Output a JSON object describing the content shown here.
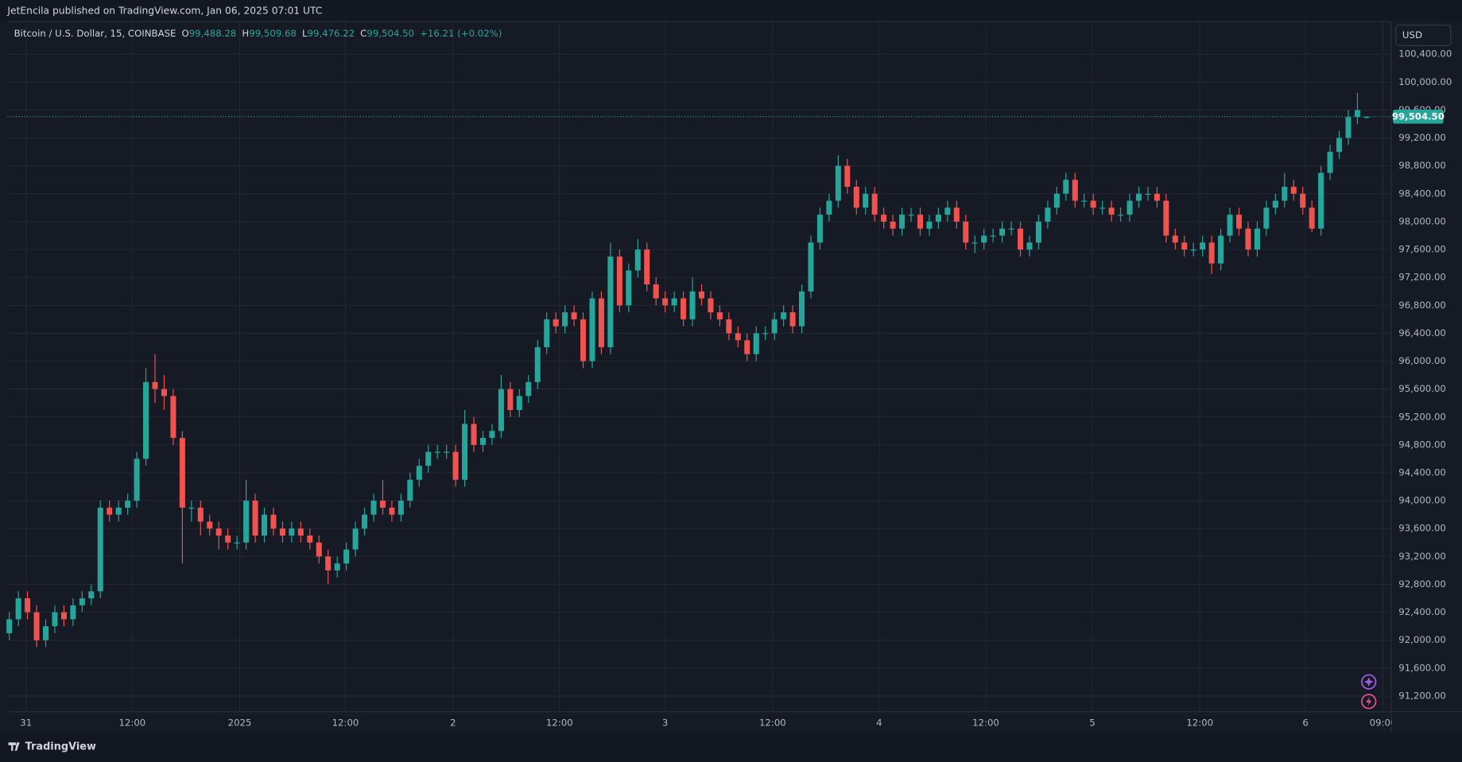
{
  "chart_data": {
    "type": "candlestick",
    "publisher": "JetEncila published on TradingView.com, Jan 06, 2025 07:01 UTC",
    "brand": "TradingView",
    "currency": "USD",
    "legend": {
      "symbol": "Bitcoin / U.S. Dollar, 15, COINBASE",
      "fields": [
        {
          "key": "O",
          "label": "99,488.28"
        },
        {
          "key": "H",
          "label": "99,509.68"
        },
        {
          "key": "L",
          "label": "99,476.22"
        },
        {
          "key": "C",
          "label": "99,504.50"
        }
      ],
      "change": "+16.21 (+0.02%)"
    },
    "last_price_label": "99,504.50",
    "up_color": "#26a69a",
    "down_color": "#ef5350",
    "grid": true,
    "xlim": [
      -0.2,
      151.7
    ],
    "xticks": [
      {
        "value": 1.84,
        "label": "31"
      },
      {
        "value": 13.5,
        "label": "12:00"
      },
      {
        "value": 25.3,
        "label": "2025"
      },
      {
        "value": 36.9,
        "label": "12:00"
      },
      {
        "value": 48.7,
        "label": "2"
      },
      {
        "value": 60.4,
        "label": "12:00"
      },
      {
        "value": 72.0,
        "label": "3"
      },
      {
        "value": 83.8,
        "label": "12:00"
      },
      {
        "value": 95.5,
        "label": "4"
      },
      {
        "value": 107.2,
        "label": "12:00"
      },
      {
        "value": 118.9,
        "label": "5"
      },
      {
        "value": 130.7,
        "label": "12:00"
      },
      {
        "value": 142.3,
        "label": "6"
      },
      {
        "value": 150.8,
        "label": "09:00"
      }
    ],
    "ylim": [
      90975,
      100870
    ],
    "yticks": [
      {
        "value": 91200,
        "label": "91,200.00"
      },
      {
        "value": 91600,
        "label": "91,600.00"
      },
      {
        "value": 92000,
        "label": "92,000.00"
      },
      {
        "value": 92400,
        "label": "92,400.00"
      },
      {
        "value": 92800,
        "label": "92,800.00"
      },
      {
        "value": 93200,
        "label": "93,200.00"
      },
      {
        "value": 93600,
        "label": "93,600.00"
      },
      {
        "value": 94000,
        "label": "94,000.00"
      },
      {
        "value": 94400,
        "label": "94,400.00"
      },
      {
        "value": 94800,
        "label": "94,800.00"
      },
      {
        "value": 95200,
        "label": "95,200.00"
      },
      {
        "value": 95600,
        "label": "95,600.00"
      },
      {
        "value": 96000,
        "label": "96,000.00"
      },
      {
        "value": 96400,
        "label": "96,400.00"
      },
      {
        "value": 96800,
        "label": "96,800.00"
      },
      {
        "value": 97200,
        "label": "97,200.00"
      },
      {
        "value": 97600,
        "label": "97,600.00"
      },
      {
        "value": 98000,
        "label": "98,000.00"
      },
      {
        "value": 98400,
        "label": "98,400.00"
      },
      {
        "value": 98800,
        "label": "98,800.00"
      },
      {
        "value": 99200,
        "label": "99,200.00"
      },
      {
        "value": 99600,
        "label": "99,600.00"
      },
      {
        "value": 100000,
        "label": "100,000.00"
      },
      {
        "value": 100400,
        "label": "100,400.00"
      }
    ],
    "open": [
      92100,
      92300,
      92600,
      92400,
      92000,
      92200,
      92400,
      92300,
      92500,
      92600,
      92700,
      93900,
      93800,
      93900,
      94000,
      94600,
      95700,
      95600,
      95500,
      94900,
      93900,
      93900,
      93700,
      93600,
      93500,
      93400,
      93400,
      94000,
      93500,
      93800,
      93600,
      93500,
      93600,
      93500,
      93400,
      93200,
      93000,
      93100,
      93300,
      93600,
      93800,
      94000,
      93900,
      93800,
      94000,
      94300,
      94500,
      94700,
      94700,
      94700,
      94300,
      95100,
      94800,
      94900,
      95000,
      95600,
      95300,
      95500,
      95700,
      96200,
      96600,
      96500,
      96700,
      96600,
      96000,
      96900,
      96200,
      97500,
      96800,
      97300,
      97600,
      97100,
      96900,
      96800,
      96900,
      96600,
      97000,
      96900,
      96700,
      96600,
      96400,
      96300,
      96100,
      96400,
      96400,
      96600,
      96700,
      96500,
      97000,
      97700,
      98100,
      98300,
      98800,
      98500,
      98200,
      98400,
      98100,
      98000,
      97900,
      98100,
      98100,
      97900,
      98000,
      98100,
      98200,
      98000,
      97700,
      97700,
      97800,
      97800,
      97900,
      97900,
      97600,
      97700,
      98000,
      98200,
      98400,
      98600,
      98300,
      98300,
      98200,
      98200,
      98100,
      98100,
      98300,
      98400,
      98400,
      98300,
      97800,
      97700,
      97600,
      97600,
      97700,
      97400,
      97800,
      98100,
      97900,
      97600,
      97900,
      98200,
      98300,
      98500,
      98400,
      98200,
      97900,
      98700,
      99000,
      99200,
      99500,
      99488.28
    ],
    "high": [
      92400,
      92700,
      92700,
      92500,
      92300,
      92500,
      92500,
      92600,
      92700,
      92800,
      94000,
      94000,
      94000,
      94100,
      94700,
      95900,
      96100,
      95800,
      95600,
      95000,
      94000,
      94000,
      93800,
      93700,
      93600,
      93500,
      94300,
      94100,
      93900,
      93900,
      93700,
      93700,
      93700,
      93600,
      93500,
      93300,
      93200,
      93400,
      93700,
      93900,
      94100,
      94300,
      94000,
      94100,
      94400,
      94600,
      94800,
      94800,
      94800,
      94800,
      95300,
      95200,
      95000,
      95100,
      95800,
      95700,
      95600,
      95800,
      96300,
      96700,
      96700,
      96800,
      96800,
      96700,
      97000,
      97000,
      97700,
      97600,
      97400,
      97750,
      97700,
      97200,
      97000,
      97000,
      97000,
      97200,
      97100,
      97000,
      96800,
      96700,
      96500,
      96400,
      96500,
      96500,
      96700,
      96800,
      96800,
      97100,
      97800,
      98200,
      98400,
      98950,
      98900,
      98600,
      98500,
      98500,
      98200,
      98100,
      98200,
      98200,
      98200,
      98100,
      98200,
      98300,
      98300,
      98100,
      97800,
      97900,
      97900,
      98000,
      98000,
      98000,
      97800,
      98100,
      98300,
      98500,
      98700,
      98700,
      98400,
      98400,
      98300,
      98300,
      98200,
      98400,
      98500,
      98500,
      98500,
      98400,
      97900,
      97800,
      97700,
      97800,
      97800,
      97900,
      98200,
      98200,
      98000,
      98000,
      98300,
      98400,
      98700,
      98600,
      98500,
      98300,
      98800,
      99100,
      99300,
      99600,
      99850,
      99509.68
    ],
    "low": [
      92000,
      92200,
      92300,
      91900,
      91900,
      92100,
      92200,
      92200,
      92400,
      92500,
      92600,
      93700,
      93700,
      93800,
      93900,
      94500,
      95400,
      95300,
      94800,
      93100,
      93700,
      93500,
      93500,
      93300,
      93300,
      93300,
      93300,
      93400,
      93400,
      93500,
      93400,
      93400,
      93400,
      93300,
      93100,
      92800,
      92900,
      93000,
      93200,
      93500,
      93700,
      93800,
      93700,
      93700,
      93900,
      94200,
      94400,
      94600,
      94600,
      94200,
      94200,
      94700,
      94700,
      94800,
      94900,
      95200,
      95200,
      95400,
      95600,
      96100,
      96400,
      96400,
      96500,
      95900,
      95900,
      96100,
      96100,
      96700,
      96700,
      97200,
      97000,
      96800,
      96700,
      96700,
      96500,
      96500,
      96800,
      96600,
      96500,
      96300,
      96200,
      96000,
      96000,
      96300,
      96300,
      96500,
      96400,
      96400,
      96900,
      97600,
      98000,
      98200,
      98400,
      98100,
      98100,
      98000,
      97900,
      97800,
      97800,
      98000,
      97800,
      97800,
      97900,
      98000,
      97900,
      97600,
      97550,
      97600,
      97700,
      97700,
      97800,
      97500,
      97500,
      97600,
      97900,
      98100,
      98300,
      98200,
      98200,
      98100,
      98100,
      98000,
      98000,
      98000,
      98200,
      98300,
      98200,
      97700,
      97600,
      97500,
      97500,
      97500,
      97250,
      97300,
      97700,
      97800,
      97500,
      97500,
      97800,
      98100,
      98200,
      98300,
      98100,
      97850,
      97800,
      98600,
      98900,
      99100,
      99400,
      99476.22
    ],
    "close": [
      92300,
      92600,
      92400,
      92000,
      92200,
      92400,
      92300,
      92500,
      92600,
      92700,
      93900,
      93800,
      93900,
      94000,
      94600,
      95700,
      95600,
      95500,
      94900,
      93900,
      93900,
      93700,
      93600,
      93500,
      93400,
      93400,
      94000,
      93500,
      93800,
      93600,
      93500,
      93600,
      93500,
      93400,
      93200,
      93000,
      93100,
      93300,
      93600,
      93800,
      94000,
      93900,
      93800,
      94000,
      94300,
      94500,
      94700,
      94700,
      94700,
      94300,
      95100,
      94800,
      94900,
      95000,
      95600,
      95300,
      95500,
      95700,
      96200,
      96600,
      96500,
      96700,
      96600,
      96000,
      96900,
      96200,
      97500,
      96800,
      97300,
      97600,
      97100,
      96900,
      96800,
      96900,
      96600,
      97000,
      96900,
      96700,
      96600,
      96400,
      96300,
      96100,
      96400,
      96400,
      96600,
      96700,
      96500,
      97000,
      97700,
      98100,
      98300,
      98800,
      98500,
      98200,
      98400,
      98100,
      98000,
      97900,
      98100,
      98100,
      97900,
      98000,
      98100,
      98200,
      98000,
      97700,
      97700,
      97800,
      97800,
      97900,
      97900,
      97600,
      97700,
      98000,
      98200,
      98400,
      98600,
      98300,
      98300,
      98200,
      98200,
      98100,
      98100,
      98300,
      98400,
      98400,
      98300,
      97800,
      97700,
      97600,
      97600,
      97700,
      97400,
      97800,
      98100,
      97900,
      97600,
      97900,
      98200,
      98300,
      98500,
      98400,
      98200,
      97900,
      98700,
      99000,
      99200,
      99500,
      99600,
      99504.5
    ]
  }
}
